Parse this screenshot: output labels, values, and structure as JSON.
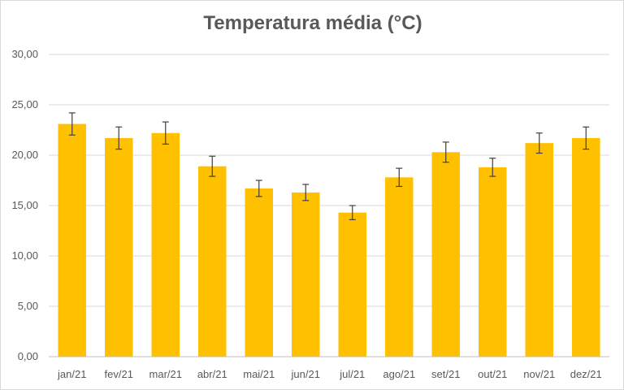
{
  "chart_data": {
    "type": "bar",
    "title": "Temperatura média (°C)",
    "xlabel": "",
    "ylabel": "",
    "categories": [
      "jan/21",
      "fev/21",
      "mar/21",
      "abr/21",
      "mai/21",
      "jun/21",
      "jul/21",
      "ago/21",
      "set/21",
      "out/21",
      "nov/21",
      "dez/21"
    ],
    "values": [
      23.1,
      21.7,
      22.2,
      18.9,
      16.7,
      16.3,
      14.3,
      17.8,
      20.3,
      18.8,
      21.2,
      21.7
    ],
    "error": [
      1.1,
      1.1,
      1.1,
      1.0,
      0.8,
      0.8,
      0.7,
      0.9,
      1.0,
      0.9,
      1.0,
      1.1
    ],
    "ylim": [
      0,
      30
    ],
    "yticks": [
      "0,00",
      "5,00",
      "10,00",
      "15,00",
      "20,00",
      "25,00",
      "30,00"
    ],
    "grid": true,
    "legend": "none",
    "colors": {
      "bar": "#FFC000",
      "grid": "#d9d9d9",
      "axis": "#bfbfbf",
      "error": "#404040"
    }
  }
}
